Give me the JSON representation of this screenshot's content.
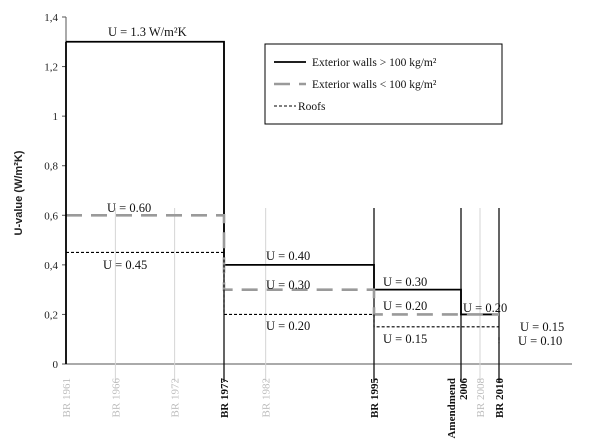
{
  "chart_data": {
    "type": "line",
    "ylabel": "U-value (W/m²K)",
    "ylim": [
      0,
      1.4
    ],
    "yticks": [
      "0",
      "0,2",
      "0,4",
      "0,6",
      "0,8",
      "1",
      "1,2",
      "1,4"
    ],
    "x_events": [
      {
        "label": "BR 1961",
        "year": 1961,
        "emphasis": false
      },
      {
        "label": "BR 1966",
        "year": 1966,
        "emphasis": false
      },
      {
        "label": "BR 1972",
        "year": 1972,
        "emphasis": false
      },
      {
        "label": "BR 1977",
        "year": 1977,
        "emphasis": true
      },
      {
        "label": "BR 1982",
        "year": 1982,
        "emphasis": false
      },
      {
        "label": "BR 1995",
        "year": 1995,
        "emphasis": true
      },
      {
        "label": "Amendmend 2006",
        "line1": "Amendmend",
        "line2": "2006",
        "year": 2006,
        "emphasis": true
      },
      {
        "label": "BR 2008",
        "year": 2008,
        "emphasis": false
      },
      {
        "label": "BR 2010",
        "year": 2010,
        "emphasis": true
      }
    ],
    "series": [
      {
        "name": "Exterior walls > 100 kg/m²",
        "style": "solid",
        "color": "#000000",
        "steps": [
          {
            "from": 1961,
            "to": 1977,
            "value": 1.3
          },
          {
            "from": 1977,
            "to": 1995,
            "value": 0.4
          },
          {
            "from": 1995,
            "to": 2006,
            "value": 0.3
          },
          {
            "from": 2006,
            "to": 2010,
            "value": 0.2
          }
        ]
      },
      {
        "name": "Exterior walls < 100 kg/m²",
        "style": "dashed",
        "color": "#9a9a9a",
        "steps": [
          {
            "from": 1961,
            "to": 1977,
            "value": 0.6
          },
          {
            "from": 1977,
            "to": 1995,
            "value": 0.3
          },
          {
            "from": 1995,
            "to": 2006,
            "value": 0.2
          },
          {
            "from": 2006,
            "to": 2010,
            "value": 0.2
          }
        ]
      },
      {
        "name": "Roofs",
        "style": "dotted",
        "color": "#000000",
        "steps": [
          {
            "from": 1961,
            "to": 1977,
            "value": 0.45
          },
          {
            "from": 1977,
            "to": 1995,
            "value": 0.2
          },
          {
            "from": 1995,
            "to": 2006,
            "value": 0.15
          },
          {
            "from": 2006,
            "to": 2010,
            "value": 0.15
          },
          {
            "from": 2010,
            "to": 2010,
            "value": 0.1
          }
        ]
      }
    ],
    "annotations": [
      {
        "text": "U = 1.3 W/m²K",
        "x": 1961,
        "y": 1.3
      },
      {
        "text": "U = 0.60",
        "x": 1961,
        "y": 0.6
      },
      {
        "text": "U = 0.45",
        "x": 1961,
        "y": 0.45
      },
      {
        "text": "U = 0.40",
        "x": 1977,
        "y": 0.4
      },
      {
        "text": "U = 0.30",
        "x": 1977,
        "y": 0.3
      },
      {
        "text": "U = 0.20",
        "x": 1977,
        "y": 0.2
      },
      {
        "text": "U = 0.30",
        "x": 1995,
        "y": 0.3
      },
      {
        "text": "U = 0.20",
        "x": 1995,
        "y": 0.2
      },
      {
        "text": "U = 0.15",
        "x": 1995,
        "y": 0.15
      },
      {
        "text": "U = 0.20",
        "x": 2006,
        "y": 0.2
      },
      {
        "text": "U = 0.15",
        "x": 2010,
        "y": 0.15
      },
      {
        "text": "U = 0.10",
        "x": 2010,
        "y": 0.1
      }
    ],
    "legend_position": "top-right",
    "grid": false
  }
}
